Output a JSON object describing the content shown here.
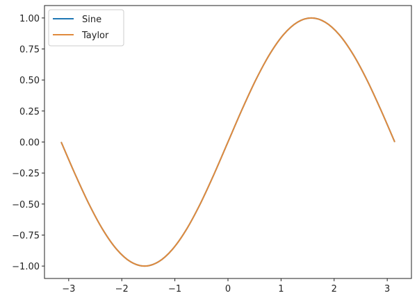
{
  "chart_data": {
    "type": "line",
    "title": "",
    "xlabel": "",
    "ylabel": "",
    "xlim": [
      -3.456,
      3.456
    ],
    "ylim": [
      -1.1,
      1.1
    ],
    "xticks": [
      -3,
      -2,
      -1,
      0,
      1,
      2,
      3
    ],
    "xtick_labels": [
      "−3",
      "−2",
      "−1",
      "0",
      "1",
      "2",
      "3"
    ],
    "yticks": [
      1.0,
      0.75,
      0.5,
      0.25,
      0.0,
      -0.25,
      -0.5,
      -0.75,
      -1.0
    ],
    "ytick_labels": [
      "1.00",
      "0.75",
      "0.50",
      "0.25",
      "0.00",
      "−0.25",
      "−0.50",
      "−0.75",
      "−1.00"
    ],
    "grid": false,
    "legend_position": "top-left",
    "x": [
      -3.1416,
      -2.8798,
      -2.618,
      -2.3562,
      -2.0944,
      -1.8326,
      -1.5708,
      -1.309,
      -1.0472,
      -0.7854,
      -0.5236,
      -0.2618,
      0,
      0.2618,
      0.5236,
      0.7854,
      1.0472,
      1.309,
      1.5708,
      1.8326,
      2.0944,
      2.3562,
      2.618,
      2.8798,
      3.1416
    ],
    "series": [
      {
        "name": "Sine",
        "color": "#1f77b4",
        "values": [
          0,
          -0.2588,
          -0.5,
          -0.7071,
          -0.866,
          -0.9659,
          -1,
          -0.9659,
          -0.866,
          -0.7071,
          -0.5,
          -0.2588,
          0,
          0.2588,
          0.5,
          0.7071,
          0.866,
          0.9659,
          1,
          0.9659,
          0.866,
          0.7071,
          0.5,
          0.2588,
          0
        ]
      },
      {
        "name": "Taylor",
        "color": "#e08a3c",
        "values": [
          0,
          -0.2588,
          -0.5,
          -0.7071,
          -0.866,
          -0.9659,
          -1,
          -0.9659,
          -0.866,
          -0.7071,
          -0.5,
          -0.2588,
          0,
          0.2588,
          0.5,
          0.7071,
          0.866,
          0.9659,
          1,
          0.9659,
          0.866,
          0.7071,
          0.5,
          0.2588,
          0
        ]
      }
    ]
  }
}
